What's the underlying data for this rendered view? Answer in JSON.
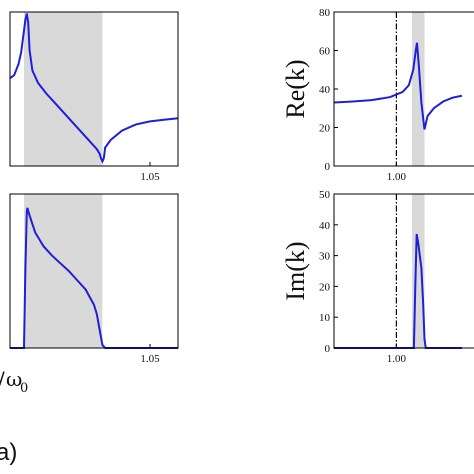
{
  "chart_data": [
    {
      "id": "left-top",
      "type": "line",
      "xlim": [
        1.0,
        1.06
      ],
      "ylim": [
        0,
        1
      ],
      "x_ticks": [
        1.05
      ],
      "x_tick_labels": [
        "1.05"
      ],
      "y_ticks": [],
      "band": [
        1.005,
        1.033
      ],
      "vline": null,
      "series": [
        {
          "x": [
            1.0,
            1.0015,
            1.003,
            1.004,
            1.005,
            1.0055,
            1.006,
            1.0065,
            1.007,
            1.008,
            1.01,
            1.013,
            1.016,
            1.019,
            1.022,
            1.025,
            1.028,
            1.031,
            1.032,
            1.0325,
            1.033,
            1.0335,
            1.034,
            1.036,
            1.04,
            1.045,
            1.05,
            1.055,
            1.06
          ],
          "y": [
            0.57,
            0.59,
            0.66,
            0.74,
            0.88,
            0.95,
            0.99,
            0.93,
            0.75,
            0.62,
            0.54,
            0.47,
            0.41,
            0.35,
            0.29,
            0.23,
            0.17,
            0.11,
            0.08,
            0.05,
            0.03,
            0.05,
            0.12,
            0.17,
            0.23,
            0.27,
            0.29,
            0.3,
            0.31
          ]
        }
      ]
    },
    {
      "id": "left-bottom",
      "type": "line",
      "xlim": [
        1.0,
        1.06
      ],
      "ylim": [
        0,
        1
      ],
      "x_ticks": [
        1.05
      ],
      "x_tick_labels": [
        "1.05"
      ],
      "y_ticks": [],
      "band": [
        1.005,
        1.033
      ],
      "vline": null,
      "series": [
        {
          "x": [
            1.0,
            1.005,
            1.0055,
            1.006,
            1.0062,
            1.007,
            1.009,
            1.012,
            1.015,
            1.018,
            1.021,
            1.024,
            1.027,
            1.03,
            1.031,
            1.032,
            1.033,
            1.034,
            1.06
          ],
          "y": [
            0,
            0,
            0.52,
            0.88,
            0.91,
            0.86,
            0.75,
            0.66,
            0.6,
            0.55,
            0.5,
            0.44,
            0.38,
            0.28,
            0.22,
            0.12,
            0.02,
            0,
            0
          ]
        }
      ]
    },
    {
      "id": "right-top",
      "type": "line",
      "ylabel": "Re(k)",
      "xlim": [
        0.9,
        1.15
      ],
      "ylim": [
        0,
        80
      ],
      "x_ticks": [
        1.0
      ],
      "x_tick_labels": [
        "1.00"
      ],
      "y_ticks": [
        0,
        20,
        40,
        60,
        80
      ],
      "y_tick_labels": [
        "0",
        "20",
        "40",
        "60",
        "80"
      ],
      "band": [
        1.025,
        1.045
      ],
      "vline": 1.0,
      "series": [
        {
          "x": [
            0.9,
            0.93,
            0.96,
            0.99,
            1.01,
            1.02,
            1.027,
            1.031,
            1.033,
            1.036,
            1.04,
            1.045,
            1.05,
            1.06,
            1.075,
            1.09,
            1.105
          ],
          "y": [
            33,
            33.5,
            34.2,
            35.8,
            38.5,
            42,
            50,
            60,
            64,
            52,
            33,
            19,
            26,
            30,
            33.5,
            35.5,
            36.5
          ]
        }
      ]
    },
    {
      "id": "right-bottom",
      "type": "line",
      "ylabel": "Im(k)",
      "xlim": [
        0.9,
        1.15
      ],
      "ylim": [
        0,
        50
      ],
      "x_ticks": [
        1.0
      ],
      "x_tick_labels": [
        "1.00"
      ],
      "y_ticks": [
        0,
        10,
        20,
        30,
        40,
        50
      ],
      "y_tick_labels": [
        "0",
        "10",
        "20",
        "30",
        "40",
        "50"
      ],
      "band": [
        1.025,
        1.045
      ],
      "vline": 1.0,
      "series": [
        {
          "x": [
            0.9,
            1.028,
            1.0305,
            1.0325,
            1.035,
            1.04,
            1.043,
            1.045,
            1.047,
            1.105
          ],
          "y": [
            0,
            0,
            22,
            37,
            34,
            26,
            14,
            3,
            0,
            0
          ]
        }
      ]
    }
  ],
  "labels": {
    "x_omega": "ω",
    "x_omega_sub": "0",
    "x_slash": "/",
    "panel_a": "a)"
  },
  "colors": {
    "curve": "#1f1fd6",
    "band": "#d9d9d9"
  }
}
